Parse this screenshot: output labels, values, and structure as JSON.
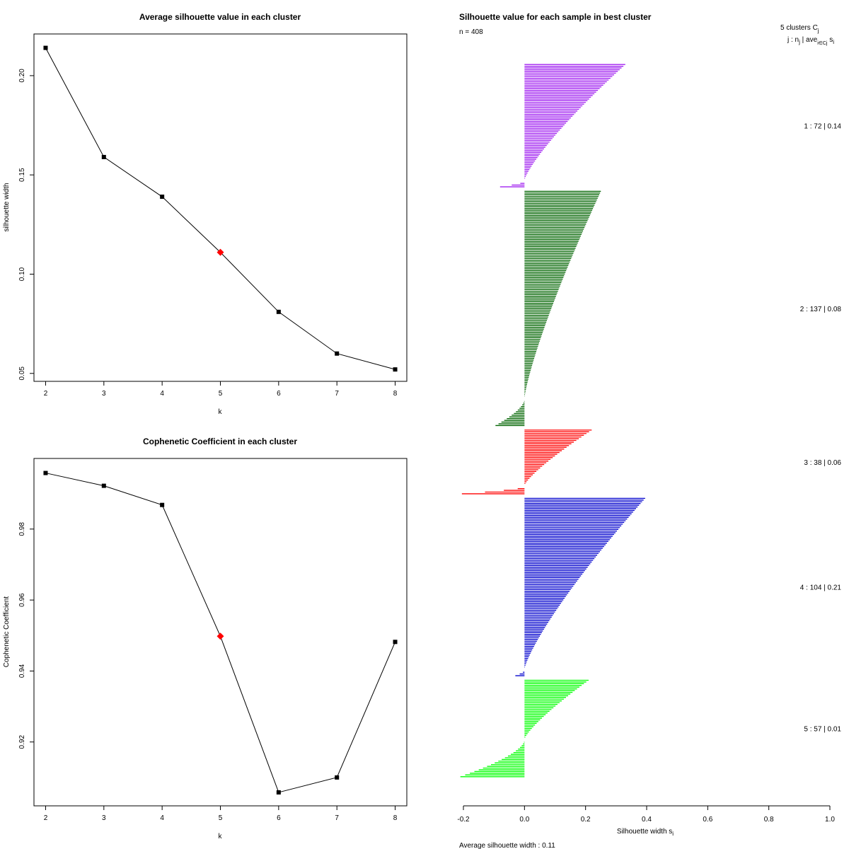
{
  "chart_data": [
    {
      "type": "line",
      "title": "Average silhouette value in each cluster",
      "xlabel": "k",
      "ylabel": "silhouette width",
      "x": [
        2,
        3,
        4,
        5,
        6,
        7,
        8
      ],
      "y": [
        0.214,
        0.159,
        0.139,
        0.111,
        0.081,
        0.06,
        0.052
      ],
      "highlight_k": 5,
      "highlight_color": "#ff0000",
      "xlim": [
        1.8,
        8.2
      ],
      "ylim": [
        0.046,
        0.221
      ],
      "xticks": [
        "2",
        "3",
        "4",
        "5",
        "6",
        "7",
        "8"
      ],
      "yticks": [
        "0.05",
        "0.10",
        "0.15",
        "0.20"
      ],
      "ytick_values": [
        0.05,
        0.1,
        0.15,
        0.2
      ]
    },
    {
      "type": "line",
      "title": "Cophenetic Coefficient in each cluster",
      "xlabel": "k",
      "ylabel": "Cophenetic Coefficient",
      "x": [
        2,
        3,
        4,
        5,
        6,
        7,
        8
      ],
      "y": [
        0.9958,
        0.9922,
        0.9868,
        0.9498,
        0.9058,
        0.91,
        0.9482
      ],
      "highlight_k": 5,
      "highlight_color": "#ff0000",
      "xlim": [
        1.8,
        8.2
      ],
      "ylim": [
        0.902,
        0.9999
      ],
      "xticks": [
        "2",
        "3",
        "4",
        "5",
        "6",
        "7",
        "8"
      ],
      "yticks": [
        "0.92",
        "0.94",
        "0.96",
        "0.98"
      ],
      "ytick_values": [
        0.92,
        0.94,
        0.96,
        0.98
      ]
    },
    {
      "type": "silhouette",
      "title": "Silhouette value for each sample in best cluster",
      "n_label": "n = 408",
      "header_line1": "5  clusters  C",
      "header_sub1": "j",
      "header_line2": "j :  n",
      "header_line2_sub": "j",
      "header_line2_rest": " | ave",
      "header_line2_sub2": "i∈Cj",
      "header_line2_end": " s",
      "header_line2_sub3": "i",
      "xlabel": "Silhouette width s",
      "xlabel_sub": "i",
      "footer": "Average silhouette width :  0.11",
      "xlim": [
        -0.2,
        1.0
      ],
      "xticks": [
        "-0.2",
        "0.0",
        "0.2",
        "0.4",
        "0.6",
        "0.8",
        "1.0"
      ],
      "xtick_values": [
        -0.2,
        0.0,
        0.2,
        0.4,
        0.6,
        0.8,
        1.0
      ],
      "clusters": [
        {
          "label": "1 :  72  |  0.14",
          "n": 72,
          "color": "#a020f0",
          "max": 0.33,
          "min": -0.08,
          "n_neg": 4
        },
        {
          "label": "2 :  137  |  0.08",
          "n": 137,
          "color": "#006400",
          "max": 0.25,
          "min": -0.095,
          "n_neg": 16
        },
        {
          "label": "3 :  38  |  0.06",
          "n": 38,
          "color": "#ff0000",
          "max": 0.22,
          "min": -0.205,
          "n_neg": 5
        },
        {
          "label": "4 :  104  |  0.21",
          "n": 104,
          "color": "#0000cd",
          "max": 0.395,
          "min": -0.03,
          "n_neg": 4
        },
        {
          "label": "5 :  57  |  0.01",
          "n": 57,
          "color": "#00ff00",
          "max": 0.21,
          "min": -0.21,
          "n_neg": 22
        }
      ]
    }
  ]
}
